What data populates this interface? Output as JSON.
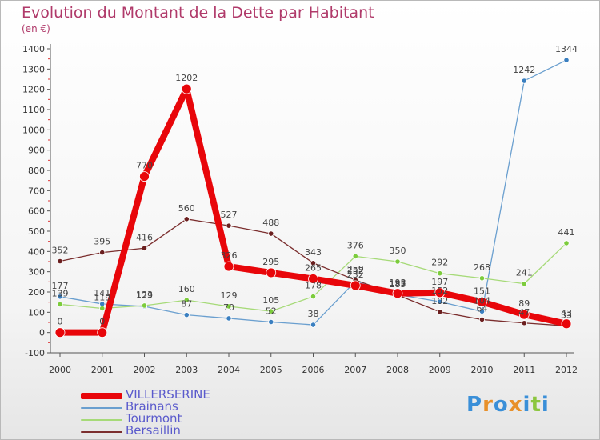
{
  "title": "Evolution du Montant de la Dette par Habitant",
  "subtitle": "(en €)",
  "brand": {
    "letters": [
      {
        "ch": "P",
        "color": "#3a8fd8"
      },
      {
        "ch": "r",
        "color": "#e8902a"
      },
      {
        "ch": "o",
        "color": "#3a8fd8"
      },
      {
        "ch": "x",
        "color": "#e8902a"
      },
      {
        "ch": "i",
        "color": "#3a8fd8"
      },
      {
        "ch": "t",
        "color": "#8cc63f"
      },
      {
        "ch": "i",
        "color": "#3a8fd8"
      }
    ]
  },
  "chart_data": {
    "type": "line",
    "title": "Evolution du Montant de la Dette par Habitant",
    "subtitle": "(en €)",
    "x": [
      "2000",
      "2001",
      "2002",
      "2003",
      "2004",
      "2005",
      "2006",
      "2007",
      "2008",
      "2009",
      "2010",
      "2011",
      "2012"
    ],
    "y_ticks": [
      "-100",
      "0",
      "100",
      "200",
      "300",
      "400",
      "500",
      "600",
      "700",
      "800",
      "900",
      "1000",
      "1100",
      "1200",
      "1300",
      "1400"
    ],
    "ylim": [
      -100,
      1400
    ],
    "grid": false,
    "legend_position": "bottom-left",
    "series": [
      {
        "name": "VILLERSERINE",
        "color": "#e8060a",
        "marker_color": "#e8060a",
        "width": 8,
        "marker_r": 6,
        "values": [
          0,
          0,
          770,
          1202,
          326,
          295,
          265,
          232,
          193,
          197,
          151,
          89,
          43
        ],
        "labels": [
          "0",
          "0",
          "770",
          "1202",
          "326",
          "295",
          "265",
          "232",
          "193",
          "197",
          "151",
          "89",
          "43"
        ]
      },
      {
        "name": "Brainans",
        "color": "#6a9fcf",
        "marker_color": "#3a7fc0",
        "width": 1.3,
        "marker_r": 3.2,
        "values": [
          177,
          141,
          129,
          87,
          70,
          52,
          38,
          252,
          187,
          152,
          104,
          1242,
          1344
        ],
        "labels": [
          "177",
          "141",
          "129",
          "87",
          "70",
          "52",
          "38",
          "252",
          "187",
          "152",
          "104",
          "1242",
          "1344"
        ]
      },
      {
        "name": "Tourmont",
        "color": "#a6da78",
        "marker_color": "#7ccc3c",
        "width": 1.3,
        "marker_r": 3.2,
        "values": [
          139,
          119,
          133,
          160,
          129,
          105,
          178,
          376,
          350,
          292,
          268,
          241,
          441
        ],
        "labels": [
          "139",
          "119",
          "133",
          "160",
          "129",
          "105",
          "178",
          "376",
          "350",
          "292",
          "268",
          "241",
          "441"
        ]
      },
      {
        "name": "Bersaillin",
        "color": "#7b2e2e",
        "marker_color": "#6b1f1f",
        "width": 1.3,
        "marker_r": 3.2,
        "values": [
          352,
          395,
          416,
          560,
          527,
          488,
          343,
          259,
          185,
          102,
          64,
          47,
          33
        ],
        "labels": [
          "352",
          "395",
          "416",
          "560",
          "527",
          "488",
          "343",
          "259",
          "185",
          "102",
          "64",
          "47",
          "33"
        ]
      }
    ]
  }
}
